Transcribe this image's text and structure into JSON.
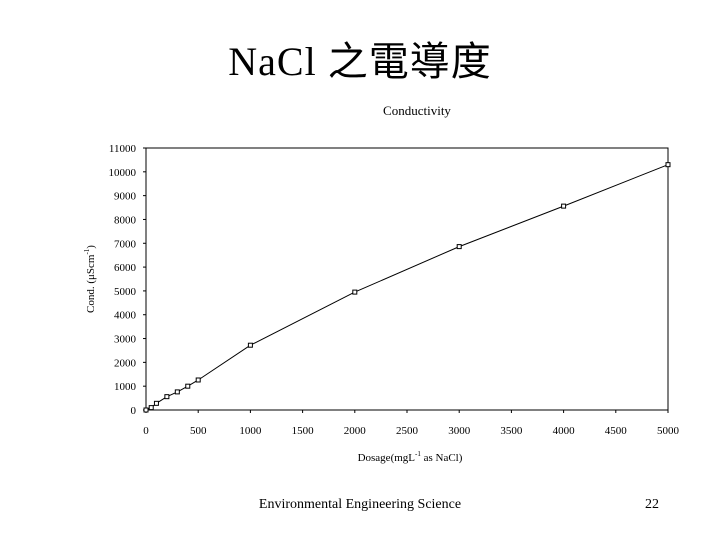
{
  "slide": {
    "title": "NaCl 之電導度",
    "footer": "Environmental Engineering Science",
    "page_number": "22"
  },
  "chart_data": {
    "type": "line",
    "title": "Conductivity",
    "xlabel_main": "Dosage(mgL",
    "xlabel_sup": "-1",
    "xlabel_tail": " as NaCl)",
    "ylabel_main": "Cond. (μScm",
    "ylabel_sup": "-1",
    "ylabel_tail": ")",
    "xlim": [
      0,
      5000
    ],
    "ylim": [
      0,
      11000
    ],
    "x_ticks": [
      "0",
      "500",
      "1000",
      "1500",
      "2000",
      "2500",
      "3000",
      "3500",
      "4000",
      "4500",
      "5000"
    ],
    "y_ticks": [
      "0",
      "1000",
      "2000",
      "3000",
      "4000",
      "5000",
      "6000",
      "7000",
      "8000",
      "9000",
      "10000",
      "11000"
    ],
    "grid": false,
    "series": [
      {
        "x": [
          0,
          50,
          100,
          200,
          300,
          400,
          500,
          1000,
          2000,
          3000,
          4000,
          5000
        ],
        "y": [
          0,
          100,
          280,
          560,
          760,
          1000,
          1260,
          2720,
          4950,
          6860,
          8560,
          10300
        ],
        "marker": "square",
        "color": "#000000"
      }
    ]
  }
}
